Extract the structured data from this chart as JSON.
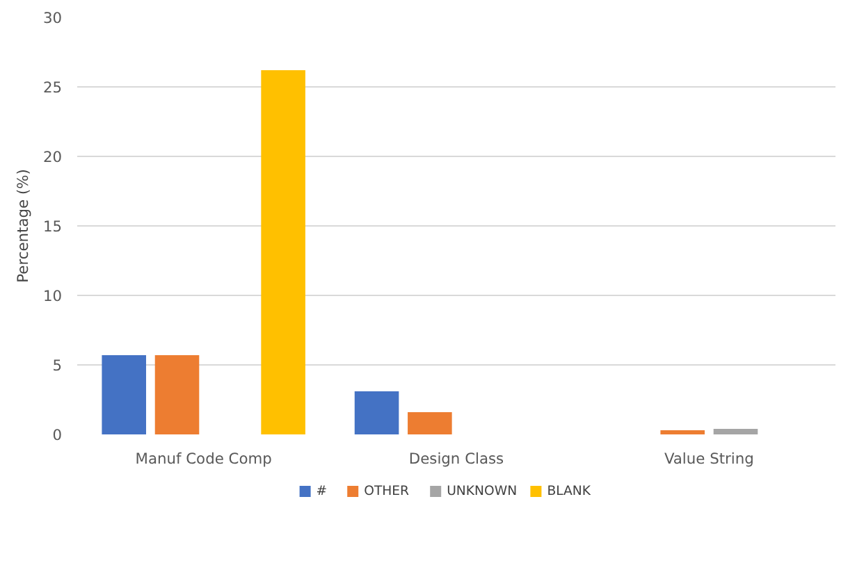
{
  "chart_data": {
    "type": "bar",
    "ylabel": "Percentage (%)",
    "categories": [
      "Manuf Code Comp",
      "Design Class",
      "Value String"
    ],
    "series": [
      {
        "name": "#",
        "color": "#4472c4",
        "values": [
          5.7,
          3.1,
          0
        ]
      },
      {
        "name": "OTHER",
        "color": "#ed7d31",
        "values": [
          5.7,
          1.6,
          0.3
        ]
      },
      {
        "name": "UNKNOWN",
        "color": "#a5a5a5",
        "values": [
          0,
          0,
          0.4
        ]
      },
      {
        "name": "BLANK",
        "color": "#ffc000",
        "values": [
          26.2,
          0,
          0
        ]
      }
    ],
    "ylim": [
      0,
      30
    ],
    "yticks": [
      0,
      5,
      10,
      15,
      20,
      25,
      30
    ],
    "grid": "y",
    "legend": "bottom"
  }
}
